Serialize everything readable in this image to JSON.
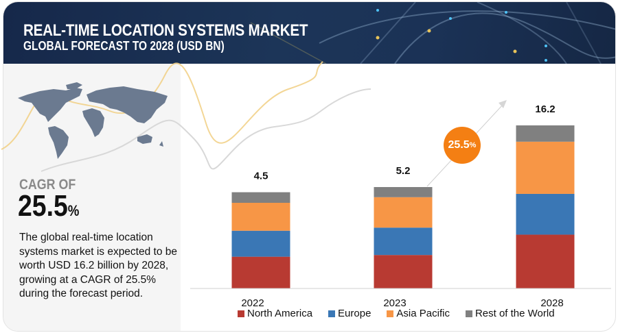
{
  "header": {
    "title": "REAL-TIME LOCATION SYSTEMS MARKET",
    "subtitle": "GLOBAL FORECAST TO 2028 (USD BN)"
  },
  "left_panel": {
    "cagr_label": "CAGR OF",
    "cagr_value": "25.5",
    "cagr_unit": "%",
    "description": "The global real-time location systems market is expected to be worth USD 16.2 billion by 2028, growing at a CAGR of 25.5% during the forecast period.",
    "map_icon": "world-map"
  },
  "growth_bubble": {
    "value": "25.5",
    "unit": "%",
    "color": "#f47f13"
  },
  "colors": {
    "north_america": "#b83a32",
    "europe": "#3a77b5",
    "asia_pacific": "#f79646",
    "rest_of_world": "#808080"
  },
  "chart_data": {
    "type": "bar",
    "stacked": true,
    "title": "Real-Time Location Systems Market, Global Forecast to 2028 (USD BN)",
    "xlabel": "",
    "ylabel": "",
    "categories": [
      "2022",
      "2023",
      "2028"
    ],
    "totals": [
      "4.5",
      "5.2",
      "16.2"
    ],
    "series": [
      {
        "name": "North America",
        "color": "#b83a32",
        "share": [
          0.33,
          0.33,
          0.33
        ]
      },
      {
        "name": "Europe",
        "color": "#3a77b5",
        "share": [
          0.27,
          0.27,
          0.25
        ]
      },
      {
        "name": "Asia Pacific",
        "color": "#f79646",
        "share": [
          0.29,
          0.3,
          0.32
        ]
      },
      {
        "name": "Rest of the World",
        "color": "#808080",
        "share": [
          0.11,
          0.1,
          0.1
        ]
      }
    ],
    "total_values": [
      4.5,
      5.2,
      16.2
    ],
    "legend_position": "bottom",
    "grid": false,
    "annotation": "25.5% CAGR"
  }
}
